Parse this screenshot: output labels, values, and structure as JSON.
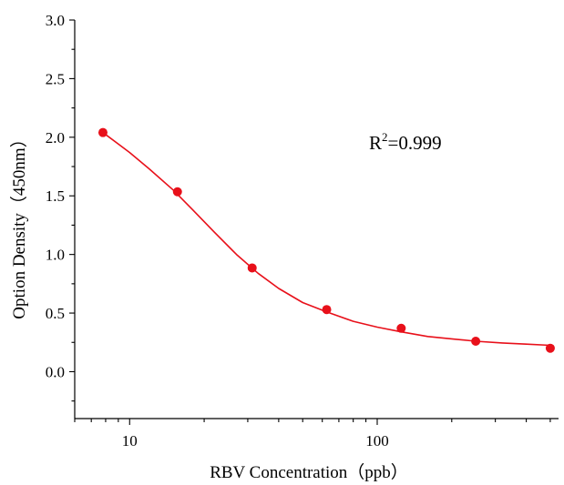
{
  "chart_data": {
    "type": "scatter",
    "xlabel": "RBV  Concentration（ppb）",
    "ylabel": "Option Density（450nm）",
    "x_scale": "log",
    "xlim": [
      6,
      540
    ],
    "ylim": [
      -0.4,
      3.0
    ],
    "x_major_ticks": [
      10,
      100
    ],
    "x_tick_labels": [
      "10",
      "100"
    ],
    "y_ticks": [
      0.0,
      0.5,
      1.0,
      1.5,
      2.0,
      2.5,
      3.0
    ],
    "y_tick_labels": [
      "0.0",
      "0.5",
      "1.0",
      "1.5",
      "2.0",
      "2.5",
      "3.0"
    ],
    "grid": false,
    "series": [
      {
        "color": "#e8101a",
        "x": [
          7.8,
          15.6,
          31.25,
          62.5,
          125,
          250,
          500
        ],
        "y": [
          2.04,
          1.535,
          0.885,
          0.53,
          0.37,
          0.26,
          0.2
        ]
      }
    ],
    "fit_curve": {
      "color": "#e8101a",
      "x": [
        7.8,
        10,
        12,
        15,
        18,
        22,
        27,
        33,
        40,
        50,
        62.5,
        80,
        100,
        125,
        160,
        200,
        250,
        320,
        400,
        500
      ],
      "y": [
        2.04,
        1.87,
        1.73,
        1.55,
        1.38,
        1.19,
        1.0,
        0.84,
        0.71,
        0.59,
        0.51,
        0.43,
        0.38,
        0.34,
        0.3,
        0.28,
        0.26,
        0.245,
        0.235,
        0.225
      ]
    },
    "annotation": {
      "text_base": "R",
      "text_sup": "2",
      "text_rest": "=0.999"
    }
  }
}
